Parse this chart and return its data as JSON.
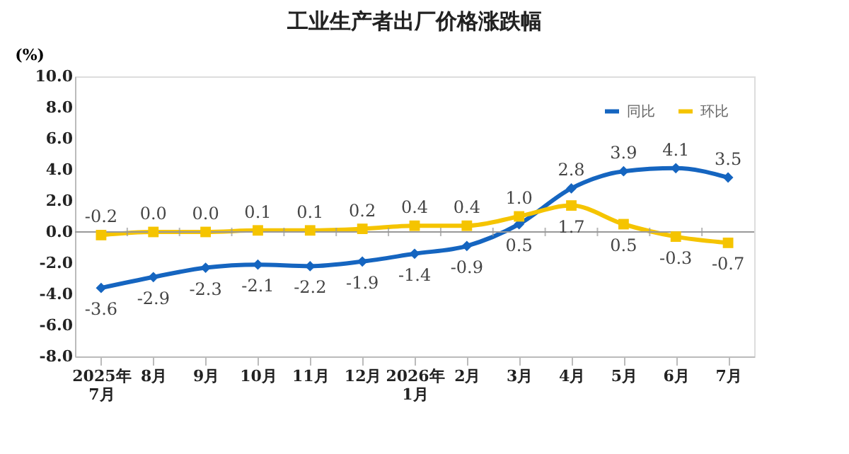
{
  "chart_data": {
    "type": "line",
    "title": "工业生产者出厂价格涨跌幅",
    "ylabel": "(%)",
    "categories": [
      "2025年\n7月",
      "8月",
      "9月",
      "10月",
      "11月",
      "12月",
      "2026年\n1月",
      "2月",
      "3月",
      "4月",
      "5月",
      "6月",
      "7月"
    ],
    "series": [
      {
        "name": "同比",
        "color": "#1565c0",
        "marker": "diamond",
        "values": [
          -3.6,
          -2.9,
          -2.3,
          -2.1,
          -2.2,
          -1.9,
          -1.4,
          -0.9,
          0.5,
          2.8,
          3.9,
          4.1,
          3.5
        ],
        "value_labels": [
          "-3.6",
          "-2.9",
          "-2.3",
          "-2.1",
          "-2.2",
          "-1.9",
          "-1.4",
          "-0.9",
          "0.5",
          "2.8",
          "3.9",
          "4.1",
          "3.5"
        ]
      },
      {
        "name": "环比",
        "color": "#f5c400",
        "marker": "square",
        "values": [
          -0.2,
          0.0,
          0.0,
          0.1,
          0.1,
          0.2,
          0.4,
          0.4,
          1.0,
          1.7,
          0.5,
          -0.3,
          -0.7
        ],
        "value_labels": [
          "-0.2",
          "0.0",
          "0.0",
          "0.1",
          "0.1",
          "0.2",
          "0.4",
          "0.4",
          "1.0",
          "1.7",
          "0.5",
          "-0.3",
          "-0.7"
        ]
      }
    ],
    "ylim": [
      -8,
      10
    ],
    "yticks": [
      {
        "value": -8,
        "label": "-8.0"
      },
      {
        "value": -6,
        "label": "-6.0"
      },
      {
        "value": -4,
        "label": "-4.0"
      },
      {
        "value": -2,
        "label": "-2.0"
      },
      {
        "value": 0,
        "label": "0.0"
      },
      {
        "value": 2,
        "label": "2.0"
      },
      {
        "value": 4,
        "label": "4.0"
      },
      {
        "value": 6,
        "label": "6.0"
      },
      {
        "value": 8,
        "label": "8.0"
      },
      {
        "value": 10,
        "label": "10.0"
      }
    ],
    "ref_lines": [
      {
        "axis": "y",
        "value": 0,
        "color": "#999999"
      }
    ],
    "legend": "top right",
    "grid": false,
    "line_style": "solid"
  }
}
